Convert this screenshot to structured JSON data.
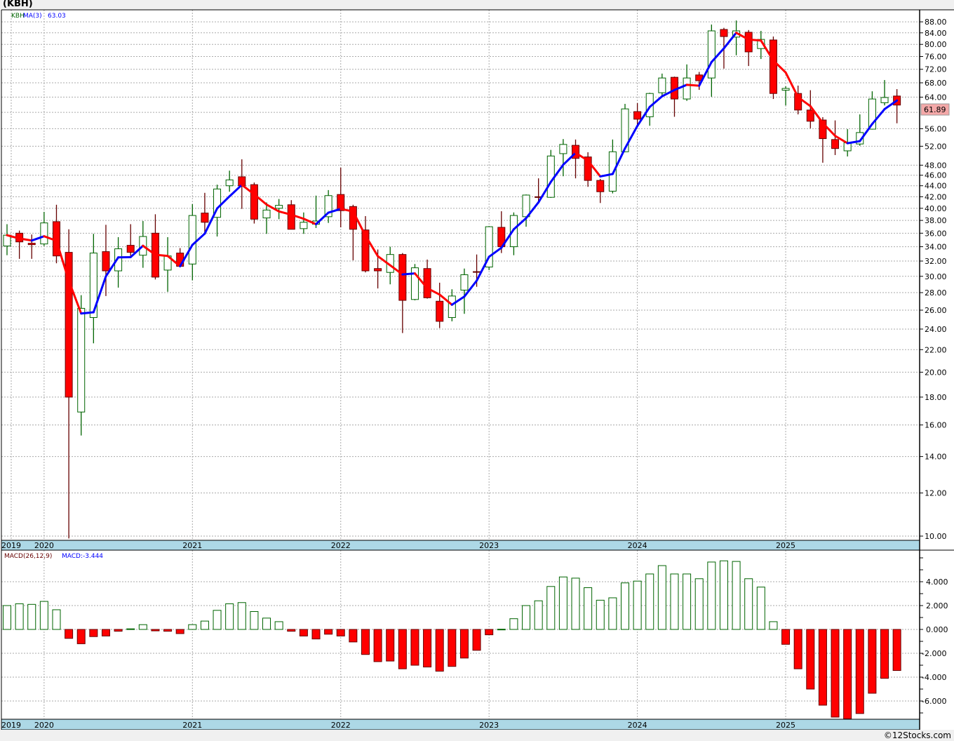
{
  "header": {
    "title": "(KBH)"
  },
  "legend": {
    "symbol": "KBH",
    "ma_label": "MA(3)",
    "ma_value": "63.03",
    "last_price": "61.89"
  },
  "macd_legend": {
    "label": "MACD(26,12,9)",
    "value": "MACD:-3.444"
  },
  "footer": {
    "credit": "©12Stocks.com"
  },
  "colors": {
    "up": "#006400",
    "down_fill": "#ff0000",
    "down_line": "#660000",
    "ma_up": "#0000ff",
    "ma_down": "#ff0000",
    "date_band": "#add8e6",
    "price_tag": "#f4a8a8"
  },
  "chart_data": [
    {
      "type": "candlestick",
      "title": "(KBH)",
      "scale": "log",
      "ylim": [
        10,
        88
      ],
      "y_ticks": [
        "88.00",
        "84.00",
        "80.00",
        "76.00",
        "72.00",
        "68.00",
        "64.00",
        "56.00",
        "52.00",
        "48.00",
        "46.00",
        "44.00",
        "42.00",
        "40.00",
        "38.00",
        "36.00",
        "34.00",
        "32.00",
        "30.00",
        "28.00",
        "26.00",
        "24.00",
        "22.00",
        "20.00",
        "18.00",
        "16.00",
        "14.00",
        "12.00",
        "10.00"
      ],
      "x_year_labels": [
        "2019",
        "2020",
        "2021",
        "2022",
        "2023",
        "2024",
        "2025"
      ],
      "start_month": "2019-10",
      "overlay": "MA(3)",
      "ohlc": [
        [
          34.1,
          37.4,
          32.8,
          35.7
        ],
        [
          36.0,
          36.4,
          32.3,
          34.7
        ],
        [
          34.5,
          35.8,
          32.3,
          34.3
        ],
        [
          34.4,
          39.4,
          34.1,
          37.6
        ],
        [
          37.8,
          40.6,
          31.7,
          32.7
        ],
        [
          33.2,
          36.6,
          9.9,
          18.0
        ],
        [
          16.9,
          27.7,
          15.3,
          26.2
        ],
        [
          25.2,
          35.9,
          22.6,
          33.1
        ],
        [
          33.3,
          37.3,
          27.6,
          30.7
        ],
        [
          30.7,
          35.4,
          28.6,
          33.7
        ],
        [
          34.2,
          37.4,
          32.5,
          33.2
        ],
        [
          32.8,
          37.9,
          31.1,
          35.5
        ],
        [
          36.0,
          39.0,
          29.6,
          29.9
        ],
        [
          30.8,
          35.4,
          28.1,
          32.7
        ],
        [
          33.1,
          33.8,
          31.2,
          31.3
        ],
        [
          31.6,
          40.7,
          29.5,
          38.8
        ],
        [
          39.2,
          42.7,
          35.9,
          37.7
        ],
        [
          38.5,
          44.2,
          35.5,
          43.4
        ],
        [
          44.0,
          46.9,
          42.9,
          45.1
        ],
        [
          45.7,
          49.2,
          39.9,
          44.0
        ],
        [
          44.2,
          44.6,
          37.5,
          38.2
        ],
        [
          38.4,
          41.0,
          35.9,
          39.7
        ],
        [
          40.0,
          41.6,
          38.2,
          40.5
        ],
        [
          40.6,
          41.4,
          36.6,
          36.6
        ],
        [
          36.7,
          39.3,
          35.9,
          37.7
        ],
        [
          37.4,
          42.2,
          36.8,
          37.9
        ],
        [
          38.6,
          43.2,
          37.6,
          42.2
        ],
        [
          42.4,
          47.5,
          36.9,
          39.6
        ],
        [
          40.3,
          40.6,
          32.1,
          36.6
        ],
        [
          36.5,
          38.7,
          30.5,
          30.7
        ],
        [
          31.0,
          33.6,
          28.5,
          30.7
        ],
        [
          30.5,
          34.0,
          29.0,
          32.9
        ],
        [
          32.9,
          33.1,
          23.6,
          27.1
        ],
        [
          27.2,
          31.6,
          27.1,
          31.1
        ],
        [
          31.0,
          32.2,
          27.3,
          27.4
        ],
        [
          27.0,
          29.2,
          24.1,
          24.8
        ],
        [
          25.2,
          28.4,
          24.8,
          27.6
        ],
        [
          28.3,
          31.0,
          25.6,
          30.2
        ],
        [
          30.6,
          32.9,
          28.7,
          30.55
        ],
        [
          31.2,
          37.1,
          30.8,
          37.0
        ],
        [
          36.9,
          39.5,
          33.1,
          34.0
        ],
        [
          34.0,
          39.3,
          32.8,
          38.8
        ],
        [
          38.6,
          42.4,
          37.0,
          42.3
        ],
        [
          42.0,
          45.4,
          40.8,
          41.95
        ],
        [
          41.9,
          51.2,
          41.8,
          49.9
        ],
        [
          50.4,
          53.6,
          45.8,
          52.4
        ],
        [
          52.2,
          53.5,
          45.4,
          49.4
        ],
        [
          49.7,
          50.7,
          43.8,
          45.0
        ],
        [
          45.0,
          45.3,
          40.9,
          42.9
        ],
        [
          43.0,
          53.5,
          42.6,
          50.8
        ],
        [
          50.8,
          62.2,
          50.7,
          60.9
        ],
        [
          60.2,
          62.4,
          56.9,
          58.3
        ],
        [
          58.9,
          65.2,
          56.7,
          65.0
        ],
        [
          65.2,
          70.7,
          64.3,
          69.4
        ],
        [
          69.6,
          69.8,
          58.9,
          63.5
        ],
        [
          63.5,
          73.5,
          63.0,
          69.4
        ],
        [
          70.3,
          71.2,
          66.0,
          68.6
        ],
        [
          69.4,
          87.0,
          64.1,
          84.7
        ],
        [
          85.2,
          85.8,
          72.2,
          82.7
        ],
        [
          82.5,
          88.5,
          76.4,
          84.7
        ],
        [
          84.2,
          85.0,
          73.0,
          77.5
        ],
        [
          78.6,
          84.7,
          75.2,
          81.7
        ],
        [
          81.5,
          82.7,
          63.5,
          65.0
        ],
        [
          65.9,
          67.0,
          61.8,
          66.4
        ],
        [
          65.0,
          67.2,
          59.5,
          60.6
        ],
        [
          60.6,
          65.9,
          56.1,
          57.8
        ],
        [
          58.1,
          58.8,
          48.5,
          53.7
        ],
        [
          53.5,
          58.0,
          50.1,
          51.5
        ],
        [
          51.0,
          55.9,
          49.8,
          52.8
        ],
        [
          52.5,
          59.5,
          52.1,
          55.1
        ],
        [
          55.9,
          65.6,
          55.8,
          63.5
        ],
        [
          62.5,
          68.8,
          61.8,
          63.9
        ],
        [
          64.3,
          66.2,
          57.3,
          61.89
        ]
      ]
    },
    {
      "type": "bar",
      "title": "MACD(26,12,9)",
      "ylim": [
        -7.6,
        6.8
      ],
      "y_ticks": [
        "4.000",
        "2.000",
        "0.000",
        "-2.000",
        "-4.000",
        "-6.000"
      ],
      "x_year_labels": [
        "2019",
        "2020",
        "2021",
        "2022",
        "2023",
        "2024",
        "2025"
      ],
      "values": [
        2.0,
        2.15,
        2.1,
        2.35,
        1.65,
        -0.75,
        -1.2,
        -0.6,
        -0.55,
        -0.15,
        0.05,
        0.4,
        -0.12,
        -0.15,
        -0.35,
        0.4,
        0.7,
        1.6,
        2.15,
        2.25,
        1.5,
        0.95,
        0.65,
        -0.15,
        -0.55,
        -0.8,
        -0.4,
        -0.55,
        -1.05,
        -2.1,
        -2.7,
        -2.65,
        -3.3,
        -3.0,
        -3.15,
        -3.5,
        -3.1,
        -2.4,
        -1.75,
        -0.45,
        0.02,
        0.9,
        2.0,
        2.4,
        3.6,
        4.4,
        4.3,
        3.5,
        2.45,
        2.65,
        3.9,
        4.05,
        4.65,
        5.35,
        4.65,
        4.65,
        4.25,
        5.65,
        5.75,
        5.7,
        4.25,
        3.55,
        0.65,
        -1.25,
        -3.3,
        -5.0,
        -6.35,
        -7.35,
        -7.5,
        -7.05,
        -5.35,
        -4.1,
        -3.444
      ]
    }
  ]
}
